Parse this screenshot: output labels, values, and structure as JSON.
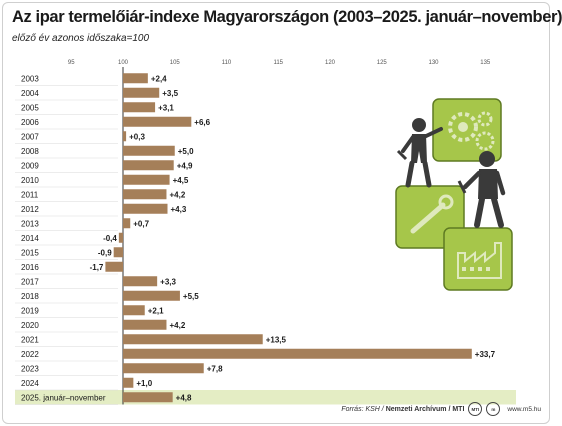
{
  "title": "Az ipar termelőiár-indexe Magyarországon (2003–2025. január–november)",
  "subtitle": "előző év azonos időszaka=100",
  "colors": {
    "bar": "#a57f59",
    "highlight_row": "#e4edc4",
    "illustration_green": "#a6c64a",
    "figure": "#3a3a3a"
  },
  "chart_data": {
    "type": "bar",
    "orientation": "horizontal",
    "baseline": 100,
    "xlim": [
      90,
      140
    ],
    "x_ticks": [
      95,
      100,
      105,
      110,
      115,
      120,
      125,
      130,
      135
    ],
    "categories": [
      "2003",
      "2004",
      "2005",
      "2006",
      "2007",
      "2008",
      "2009",
      "2010",
      "2011",
      "2012",
      "2013",
      "2014",
      "2015",
      "2016",
      "2017",
      "2018",
      "2019",
      "2020",
      "2021",
      "2022",
      "2023",
      "2024",
      "2025. január–november"
    ],
    "values": [
      2.4,
      3.5,
      3.1,
      6.6,
      0.3,
      5.0,
      4.9,
      4.5,
      4.2,
      4.3,
      0.7,
      -0.4,
      -0.9,
      -1.7,
      3.3,
      5.5,
      2.1,
      4.2,
      13.5,
      33.7,
      7.8,
      1.0,
      4.8
    ],
    "labels": [
      "+2,4",
      "+3,5",
      "+3,1",
      "+6,6",
      "+0,3",
      "+5,0",
      "+4,9",
      "+4,5",
      "+4,2",
      "+4,3",
      "+0,7",
      "-0,4",
      "-0,9",
      "-1,7",
      "+3,3",
      "+5,5",
      "+2,1",
      "+4,2",
      "+13,5",
      "+33,7",
      "+7,8",
      "+1,0",
      "+4,8"
    ],
    "highlighted_category": "2025. január–november"
  },
  "footer": {
    "source_prefix": "Forrás: KSH / ",
    "source_bold": "Nemzeti Archívum / MTI",
    "logo1": "MTI",
    "logo2": "m",
    "site": "www.m5.hu"
  }
}
